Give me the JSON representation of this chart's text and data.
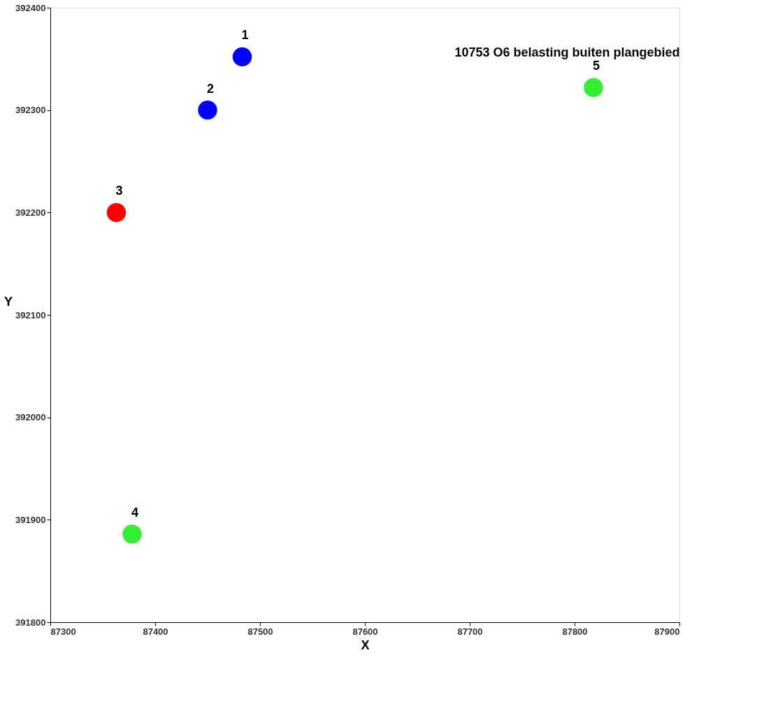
{
  "chart_data": {
    "type": "scatter",
    "title": "10753 O6 belasting buiten plangebied",
    "xlabel": "X",
    "ylabel": "Y",
    "x": [
      87483,
      87450,
      87363,
      87378,
      87818
    ],
    "values": [
      392352,
      392300,
      392200,
      391886,
      392322
    ],
    "colors": [
      "#0000ff",
      "#0000ff",
      "#ff0000",
      "#33ee33",
      "#33ee33"
    ],
    "marker": "circle",
    "grid": false,
    "legend": false,
    "xlim": [
      87300,
      87900
    ],
    "xticks": [
      87300,
      87400,
      87500,
      87600,
      87700,
      87800,
      87900
    ],
    "ylim": [
      391800,
      392400
    ],
    "yticks": [
      391800,
      391900,
      392000,
      392100,
      392200,
      392300,
      392400
    ],
    "annotations": [
      {
        "text": "1",
        "x": 87483,
        "y": 392352
      },
      {
        "text": "2",
        "x": 87450,
        "y": 392300
      },
      {
        "text": "3",
        "x": 87363,
        "y": 392200
      },
      {
        "text": "4",
        "x": 87378,
        "y": 391886
      },
      {
        "text": "5",
        "x": 87818,
        "y": 392322
      }
    ]
  }
}
